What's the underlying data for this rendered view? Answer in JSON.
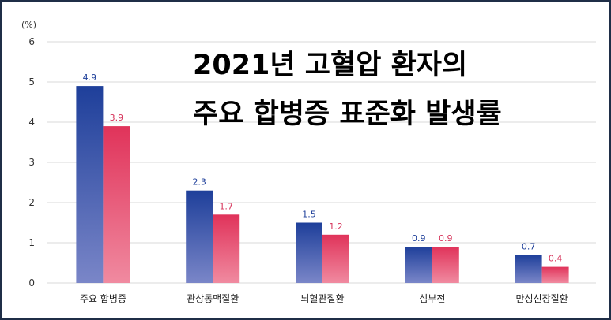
{
  "chart_data": {
    "type": "bar",
    "title_lines": [
      "2021년 고혈압 환자의",
      "주요 합병증 표준화 발생률"
    ],
    "unit_label": "(%)",
    "categories": [
      "주요 합병증",
      "관상동맥질환",
      "뇌혈관질환",
      "심부전",
      "만성신장질환"
    ],
    "series": [
      {
        "values": [
          4.9,
          2.3,
          1.5,
          0.9,
          0.7
        ],
        "labels": [
          "4.9",
          "2.3",
          "1.5",
          "0.9",
          "0.7"
        ],
        "color": "#1e3f9a",
        "color_light": "#7a86c8"
      },
      {
        "values": [
          3.9,
          1.7,
          1.2,
          0.9,
          0.4
        ],
        "labels": [
          "3.9",
          "1.7",
          "1.2",
          "0.9",
          "0.4"
        ],
        "color": "#e0335a",
        "color_light": "#f08aa0"
      }
    ],
    "y_ticks": [
      "0",
      "1",
      "2",
      "3",
      "4",
      "5",
      "6"
    ],
    "ylim": [
      0,
      6
    ],
    "grid": true,
    "label_colors": [
      "#1e3f9a",
      "#d6335a"
    ]
  }
}
